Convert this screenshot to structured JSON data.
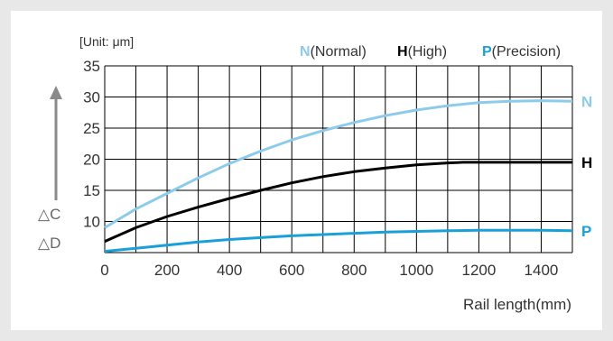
{
  "chart_data": {
    "type": "line",
    "unit_label": "[Unit: μm]",
    "xlabel": "Rail length(mm)",
    "xlim": [
      0,
      1500
    ],
    "ylim": [
      5,
      35
    ],
    "x_ticks": [
      0,
      200,
      400,
      600,
      800,
      1000,
      1200,
      1400
    ],
    "y_ticks": [
      10,
      15,
      20,
      25,
      30,
      35
    ],
    "grid": true,
    "y_side_labels": [
      "△C",
      "△D"
    ],
    "legend": [
      {
        "key": "N",
        "text": "(Normal)"
      },
      {
        "key": "H",
        "text": "(High)"
      },
      {
        "key": "P",
        "text": "(Precision)"
      }
    ],
    "series": [
      {
        "key": "N",
        "name": "Normal",
        "color": "#8ccbeb",
        "x": [
          0,
          100,
          200,
          300,
          400,
          500,
          600,
          700,
          800,
          900,
          1000,
          1100,
          1200,
          1300,
          1400,
          1500
        ],
        "y": [
          9,
          12,
          14.5,
          17,
          19.3,
          21.3,
          23.1,
          24.6,
          25.9,
          27,
          27.9,
          28.6,
          29.1,
          29.3,
          29.4,
          29.3
        ]
      },
      {
        "key": "H",
        "name": "High",
        "color": "#000000",
        "x": [
          0,
          100,
          200,
          300,
          400,
          500,
          600,
          700,
          800,
          900,
          1000,
          1100,
          1150,
          1200,
          1300,
          1400,
          1500
        ],
        "y": [
          6.8,
          9,
          10.8,
          12.3,
          13.7,
          15,
          16.2,
          17.2,
          18,
          18.6,
          19.1,
          19.4,
          19.5,
          19.5,
          19.5,
          19.5,
          19.5
        ]
      },
      {
        "key": "P",
        "name": "Precision",
        "color": "#1aa0d8",
        "x": [
          0,
          100,
          200,
          300,
          400,
          500,
          600,
          700,
          800,
          900,
          1000,
          1100,
          1200,
          1300,
          1400,
          1500
        ],
        "y": [
          5.2,
          5.7,
          6.2,
          6.7,
          7.1,
          7.4,
          7.7,
          7.9,
          8.1,
          8.3,
          8.4,
          8.5,
          8.6,
          8.6,
          8.6,
          8.5
        ]
      }
    ]
  }
}
